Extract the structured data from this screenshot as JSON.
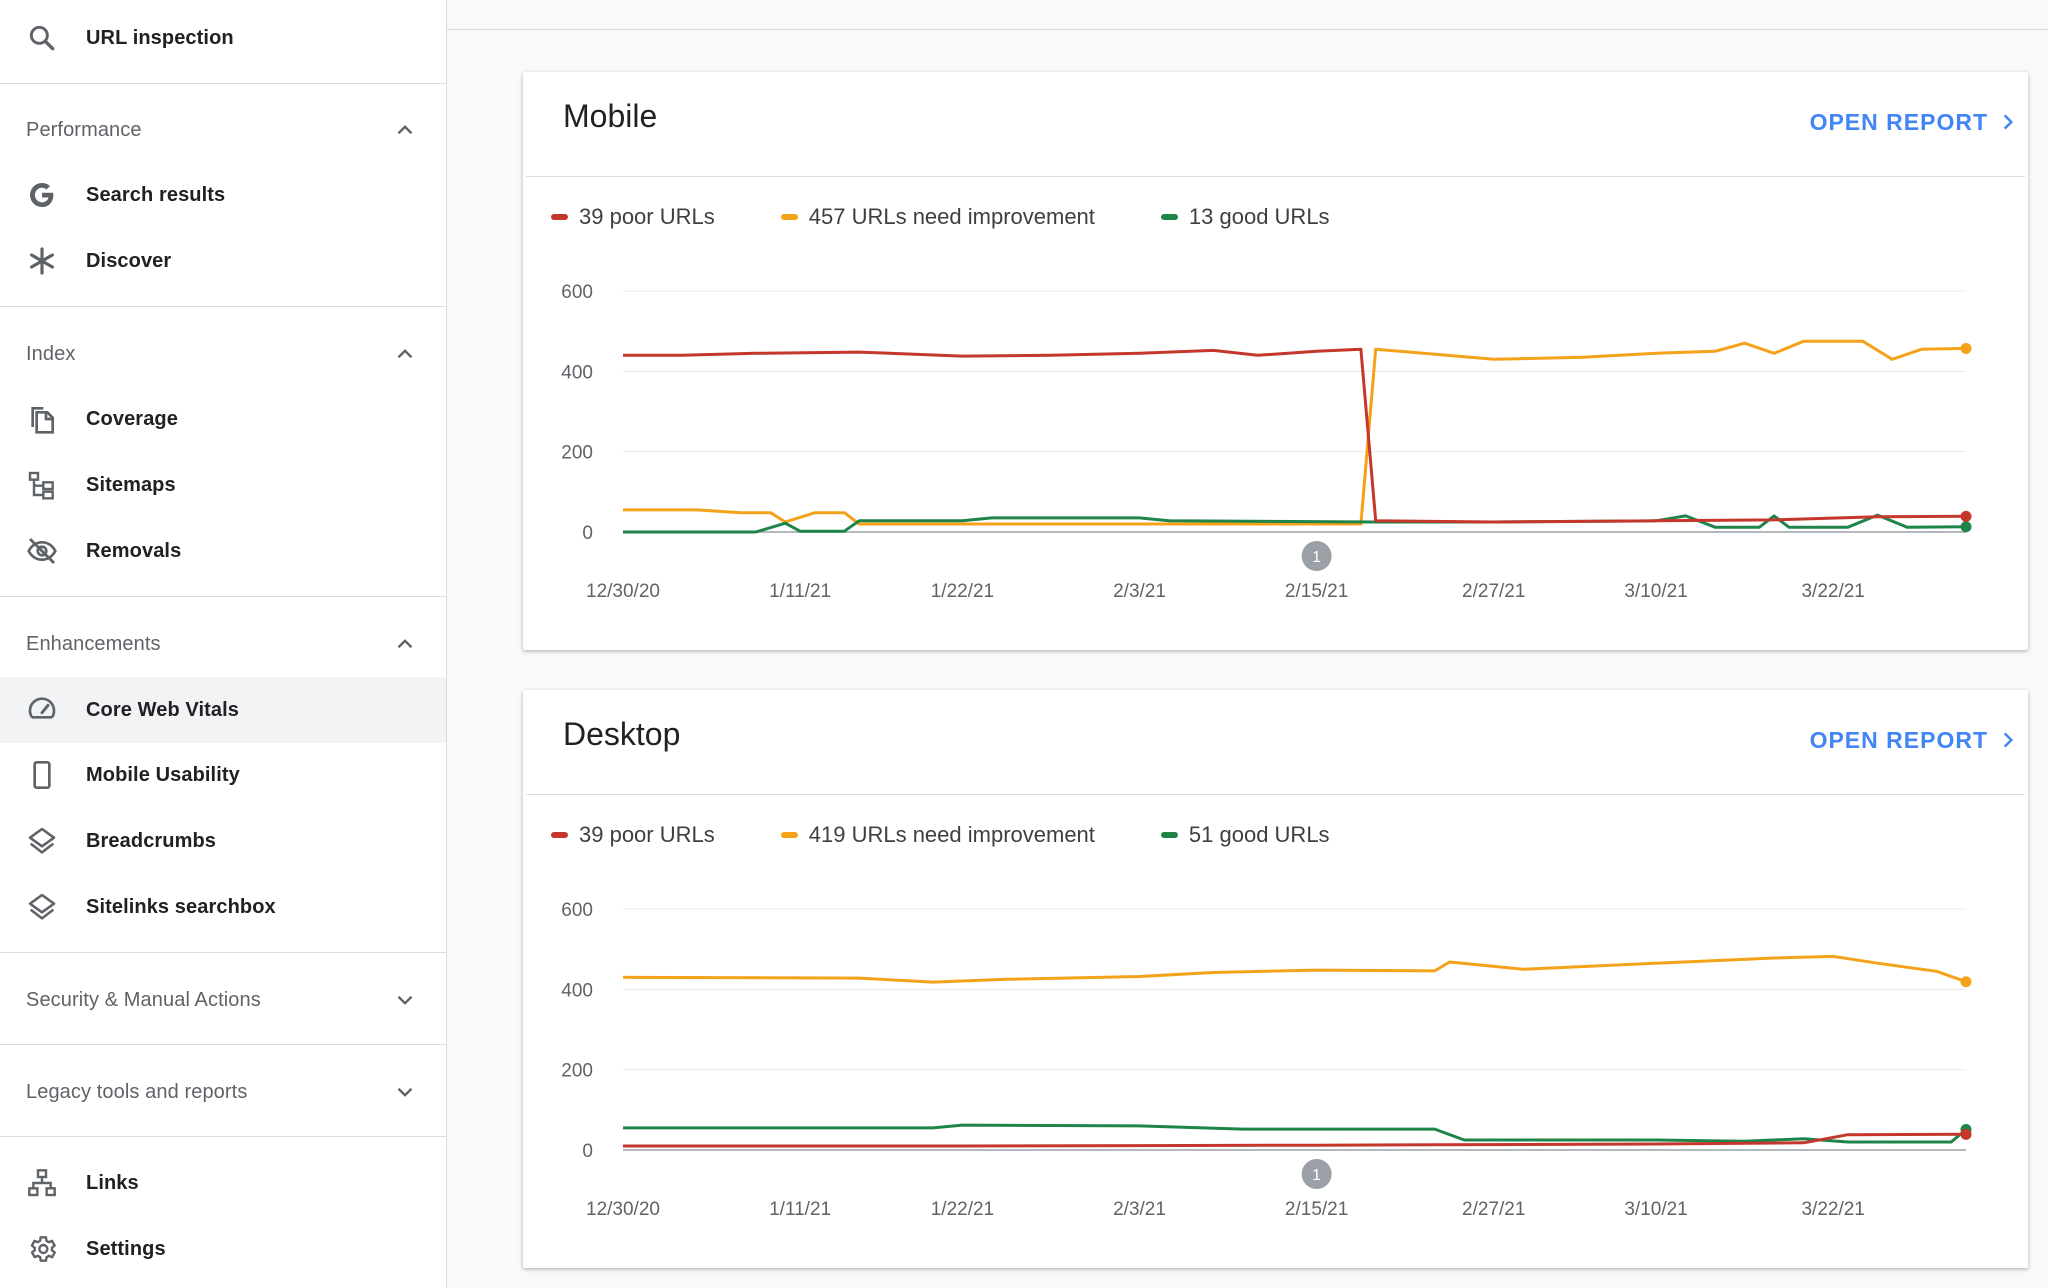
{
  "sidebar": {
    "top_item": {
      "label": "URL inspection",
      "icon": "search-icon"
    },
    "sections": [
      {
        "key": "performance",
        "label": "Performance",
        "expanded": true,
        "items": [
          {
            "label": "Search results",
            "icon": "google-g-icon"
          },
          {
            "label": "Discover",
            "icon": "asterisk-icon"
          }
        ]
      },
      {
        "key": "index",
        "label": "Index",
        "expanded": true,
        "items": [
          {
            "label": "Coverage",
            "icon": "copy-pages-icon"
          },
          {
            "label": "Sitemaps",
            "icon": "sitemap-tree-icon"
          },
          {
            "label": "Removals",
            "icon": "eye-off-icon"
          }
        ]
      },
      {
        "key": "enhancements",
        "label": "Enhancements",
        "expanded": true,
        "items": [
          {
            "label": "Core Web Vitals",
            "icon": "speedometer-icon",
            "active": true
          },
          {
            "label": "Mobile Usability",
            "icon": "phone-icon"
          },
          {
            "label": "Breadcrumbs",
            "icon": "layers-icon"
          },
          {
            "label": "Sitelinks searchbox",
            "icon": "layers-icon"
          }
        ]
      },
      {
        "key": "security",
        "label": "Security & Manual Actions",
        "expanded": false,
        "items": []
      },
      {
        "key": "legacy",
        "label": "Legacy tools and reports",
        "expanded": false,
        "items": []
      }
    ],
    "bottom_items": [
      {
        "label": "Links",
        "icon": "links-icon"
      },
      {
        "label": "Settings",
        "icon": "gear-icon"
      }
    ]
  },
  "colors": {
    "poor": "#c5372c",
    "needs": "#f4a21a",
    "good": "#1e8449",
    "accent": "#4285f4"
  },
  "cards": [
    {
      "key": "mobile",
      "title": "Mobile",
      "action": "OPEN REPORT",
      "legend": {
        "poor": "39 poor URLs",
        "needs": "457 URLs need improvement",
        "good": "13 good URLs"
      },
      "annotation": "1"
    },
    {
      "key": "desktop",
      "title": "Desktop",
      "action": "OPEN REPORT",
      "legend": {
        "poor": "39 poor URLs",
        "needs": "419 URLs need improvement",
        "good": "51 good URLs"
      },
      "annotation": "1"
    }
  ],
  "chart_data": [
    {
      "type": "line",
      "title": "Mobile",
      "x_tick_labels": [
        "12/30/20",
        "1/11/21",
        "1/22/21",
        "2/3/21",
        "2/15/21",
        "2/27/21",
        "3/10/21",
        "3/22/21"
      ],
      "x_range": [
        "12/30/20",
        "3/31/21"
      ],
      "ylim": [
        0,
        600
      ],
      "y_ticks": [
        0,
        200,
        400,
        600
      ],
      "grid": true,
      "legend_position": "top-left",
      "annotation": {
        "label": "1",
        "x": "2/15/21"
      },
      "series": [
        {
          "name": "39 poor URLs",
          "color_key": "poor",
          "points": [
            [
              "12/30/20",
              440
            ],
            [
              "1/3/21",
              440
            ],
            [
              "1/8/21",
              445
            ],
            [
              "1/15/21",
              448
            ],
            [
              "1/22/21",
              438
            ],
            [
              "1/28/21",
              440
            ],
            [
              "2/3/21",
              445
            ],
            [
              "2/8/21",
              452
            ],
            [
              "2/11/21",
              440
            ],
            [
              "2/15/21",
              450
            ],
            [
              "2/18/21",
              455
            ],
            [
              "2/19/21",
              28
            ],
            [
              "2/27/21",
              25
            ],
            [
              "3/10/21",
              28
            ],
            [
              "3/18/21",
              30
            ],
            [
              "3/25/21",
              38
            ],
            [
              "3/31/21",
              39
            ]
          ]
        },
        {
          "name": "457 URLs need improvement",
          "color_key": "needs",
          "points": [
            [
              "12/30/20",
              55
            ],
            [
              "1/4/21",
              55
            ],
            [
              "1/7/21",
              48
            ],
            [
              "1/9/21",
              48
            ],
            [
              "1/10/21",
              25
            ],
            [
              "1/12/21",
              48
            ],
            [
              "1/14/21",
              48
            ],
            [
              "1/15/21",
              20
            ],
            [
              "2/18/21",
              20
            ],
            [
              "2/19/21",
              455
            ],
            [
              "2/27/21",
              430
            ],
            [
              "3/5/21",
              435
            ],
            [
              "3/10/21",
              445
            ],
            [
              "3/14/21",
              450
            ],
            [
              "3/16/21",
              470
            ],
            [
              "3/18/21",
              445
            ],
            [
              "3/20/21",
              475
            ],
            [
              "3/24/21",
              475
            ],
            [
              "3/26/21",
              430
            ],
            [
              "3/28/21",
              455
            ],
            [
              "3/31/21",
              457
            ]
          ]
        },
        {
          "name": "13 good URLs",
          "color_key": "good",
          "points": [
            [
              "12/30/20",
              0
            ],
            [
              "1/8/21",
              0
            ],
            [
              "1/10/21",
              22
            ],
            [
              "1/11/21",
              2
            ],
            [
              "1/14/21",
              2
            ],
            [
              "1/15/21",
              28
            ],
            [
              "1/22/21",
              28
            ],
            [
              "1/24/21",
              35
            ],
            [
              "2/3/21",
              35
            ],
            [
              "2/5/21",
              28
            ],
            [
              "2/19/21",
              25
            ],
            [
              "2/27/21",
              25
            ],
            [
              "3/10/21",
              28
            ],
            [
              "3/12/21",
              40
            ],
            [
              "3/14/21",
              12
            ],
            [
              "3/17/21",
              12
            ],
            [
              "3/18/21",
              40
            ],
            [
              "3/19/21",
              12
            ],
            [
              "3/23/21",
              12
            ],
            [
              "3/25/21",
              42
            ],
            [
              "3/27/21",
              12
            ],
            [
              "3/31/21",
              13
            ]
          ]
        }
      ]
    },
    {
      "type": "line",
      "title": "Desktop",
      "x_tick_labels": [
        "12/30/20",
        "1/11/21",
        "1/22/21",
        "2/3/21",
        "2/15/21",
        "2/27/21",
        "3/10/21",
        "3/22/21"
      ],
      "x_range": [
        "12/30/20",
        "3/31/21"
      ],
      "ylim": [
        0,
        600
      ],
      "y_ticks": [
        0,
        200,
        400,
        600
      ],
      "grid": true,
      "legend_position": "top-left",
      "annotation": {
        "label": "1",
        "x": "2/15/21"
      },
      "series": [
        {
          "name": "39 poor URLs",
          "color_key": "poor",
          "points": [
            [
              "12/30/20",
              10
            ],
            [
              "1/22/21",
              10
            ],
            [
              "2/15/21",
              12
            ],
            [
              "3/10/21",
              15
            ],
            [
              "3/20/21",
              18
            ],
            [
              "3/23/21",
              38
            ],
            [
              "3/31/21",
              39
            ]
          ]
        },
        {
          "name": "419 URLs need improvement",
          "color_key": "needs",
          "points": [
            [
              "12/30/20",
              430
            ],
            [
              "1/15/21",
              428
            ],
            [
              "1/20/21",
              418
            ],
            [
              "1/25/21",
              425
            ],
            [
              "2/3/21",
              432
            ],
            [
              "2/8/21",
              442
            ],
            [
              "2/15/21",
              448
            ],
            [
              "2/23/21",
              446
            ],
            [
              "2/24/21",
              468
            ],
            [
              "3/1/21",
              450
            ],
            [
              "3/10/21",
              465
            ],
            [
              "3/18/21",
              478
            ],
            [
              "3/22/21",
              482
            ],
            [
              "3/25/21",
              465
            ],
            [
              "3/29/21",
              445
            ],
            [
              "3/31/21",
              419
            ]
          ]
        },
        {
          "name": "51 good URLs",
          "color_key": "good",
          "points": [
            [
              "12/30/20",
              55
            ],
            [
              "1/20/21",
              55
            ],
            [
              "1/22/21",
              62
            ],
            [
              "2/3/21",
              60
            ],
            [
              "2/10/21",
              52
            ],
            [
              "2/23/21",
              52
            ],
            [
              "2/25/21",
              25
            ],
            [
              "3/10/21",
              25
            ],
            [
              "3/16/21",
              22
            ],
            [
              "3/20/21",
              28
            ],
            [
              "3/23/21",
              20
            ],
            [
              "3/30/21",
              20
            ],
            [
              "3/31/21",
              51
            ]
          ]
        }
      ]
    }
  ]
}
